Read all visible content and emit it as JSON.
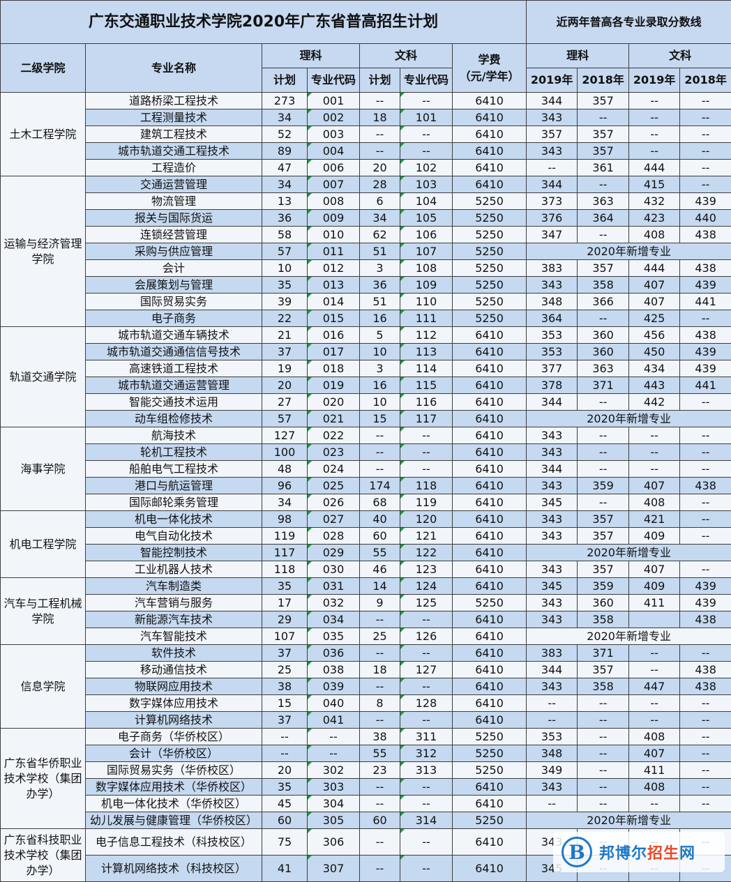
{
  "title": "广东交通职业技术学院2020年广东省普高招生计划",
  "subtitle": "近两年普高各专业录取分数线",
  "headers": {
    "college": "二级学院",
    "major": "专业名称",
    "sci": "理科",
    "arts": "文科",
    "plan": "计划",
    "code": "专业代码",
    "fee": "学费\n（元/学年）",
    "sci2": "理科",
    "arts2": "文科",
    "y2019": "2019年",
    "y2018": "2018年"
  },
  "new_label": "2020年新增专业",
  "groups": [
    {
      "name": "土木工程学院",
      "rows": [
        [
          "道路桥梁工程技术",
          "273",
          "001",
          "--",
          "--",
          "6410",
          "344",
          "357",
          "--",
          "--"
        ],
        [
          "工程测量技术",
          "34",
          "002",
          "18",
          "101",
          "6410",
          "343",
          "--",
          "--",
          "--"
        ],
        [
          "建筑工程技术",
          "52",
          "003",
          "--",
          "--",
          "6410",
          "357",
          "357",
          "--",
          "--"
        ],
        [
          "城市轨道交通工程技术",
          "89",
          "004",
          "--",
          "--",
          "6410",
          "343",
          "357",
          "--",
          "--"
        ],
        [
          "工程造价",
          "47",
          "006",
          "20",
          "102",
          "6410",
          "--",
          "361",
          "444",
          "--"
        ]
      ]
    },
    {
      "name": "运输与经济管理学院",
      "rows": [
        [
          "交通运营管理",
          "34",
          "007",
          "28",
          "103",
          "6410",
          "344",
          "--",
          "415",
          "--"
        ],
        [
          "物流管理",
          "13",
          "008",
          "6",
          "104",
          "5250",
          "373",
          "363",
          "432",
          "439"
        ],
        [
          "报关与国际货运",
          "36",
          "009",
          "34",
          "105",
          "5250",
          "376",
          "364",
          "423",
          "440"
        ],
        [
          "连锁经营管理",
          "58",
          "010",
          "62",
          "106",
          "5250",
          "347",
          "--",
          "408",
          "438"
        ],
        [
          "采购与供应管理",
          "57",
          "011",
          "51",
          "107",
          "5250",
          "NEW"
        ],
        [
          "会计",
          "10",
          "012",
          "3",
          "108",
          "5250",
          "383",
          "357",
          "444",
          "438"
        ],
        [
          "会展策划与管理",
          "35",
          "013",
          "36",
          "109",
          "5250",
          "343",
          "358",
          "407",
          "439"
        ],
        [
          "国际贸易实务",
          "39",
          "014",
          "51",
          "110",
          "5250",
          "348",
          "366",
          "407",
          "441"
        ],
        [
          "电子商务",
          "22",
          "015",
          "16",
          "111",
          "5250",
          "364",
          "--",
          "425",
          "--"
        ]
      ]
    },
    {
      "name": "轨道交通学院",
      "rows": [
        [
          "城市轨道交通车辆技术",
          "21",
          "016",
          "5",
          "112",
          "6410",
          "353",
          "360",
          "456",
          "438"
        ],
        [
          "城市轨道交通通信信号技术",
          "37",
          "017",
          "10",
          "113",
          "6410",
          "353",
          "360",
          "450",
          "439"
        ],
        [
          "高速铁道工程技术",
          "19",
          "018",
          "3",
          "114",
          "6410",
          "377",
          "363",
          "434",
          "439"
        ],
        [
          "城市轨道交通运营管理",
          "20",
          "019",
          "16",
          "115",
          "6410",
          "378",
          "371",
          "443",
          "441"
        ],
        [
          "智能交通技术运用",
          "27",
          "020",
          "10",
          "116",
          "6410",
          "344",
          "--",
          "442",
          "--"
        ],
        [
          "动车组检修技术",
          "57",
          "021",
          "15",
          "117",
          "6410",
          "NEW"
        ]
      ]
    },
    {
      "name": "海事学院",
      "rows": [
        [
          "航海技术",
          "127",
          "022",
          "--",
          "--",
          "6410",
          "343",
          "--",
          "--",
          "--"
        ],
        [
          "轮机工程技术",
          "100",
          "023",
          "--",
          "--",
          "6410",
          "343",
          "--",
          "--",
          "--"
        ],
        [
          "船舶电气工程技术",
          "48",
          "024",
          "--",
          "--",
          "6410",
          "344",
          "--",
          "--",
          "--"
        ],
        [
          "港口与航运管理",
          "96",
          "025",
          "174",
          "118",
          "6410",
          "343",
          "359",
          "407",
          "438"
        ],
        [
          "国际邮轮乘务管理",
          "34",
          "026",
          "68",
          "119",
          "6410",
          "345",
          "--",
          "408",
          "--"
        ]
      ]
    },
    {
      "name": "机电工程学院",
      "rows": [
        [
          "机电一体化技术",
          "98",
          "027",
          "40",
          "120",
          "6410",
          "343",
          "357",
          "421",
          "--"
        ],
        [
          "电气自动化技术",
          "119",
          "028",
          "60",
          "121",
          "6410",
          "343",
          "357",
          "409",
          "--"
        ],
        [
          "智能控制技术",
          "117",
          "029",
          "55",
          "122",
          "6410",
          "NEW"
        ],
        [
          "工业机器人技术",
          "118",
          "030",
          "46",
          "123",
          "6410",
          "343",
          "357",
          "407",
          "--"
        ]
      ]
    },
    {
      "name": "汽车与工程机械学院",
      "rows": [
        [
          "汽车制造类",
          "35",
          "031",
          "14",
          "124",
          "6410",
          "345",
          "359",
          "409",
          "439"
        ],
        [
          "汽车营销与服务",
          "17",
          "032",
          "9",
          "125",
          "5250",
          "343",
          "360",
          "411",
          "439"
        ],
        [
          "新能源汽车技术",
          "29",
          "034",
          "--",
          "--",
          "6410",
          "343",
          "358",
          "",
          "438"
        ],
        [
          "汽车智能技术",
          "107",
          "035",
          "25",
          "126",
          "6410",
          "NEW"
        ]
      ]
    },
    {
      "name": "信息学院",
      "rows": [
        [
          "软件技术",
          "37",
          "036",
          "--",
          "--",
          "6410",
          "383",
          "371",
          "--",
          "--"
        ],
        [
          "移动通信技术",
          "25",
          "038",
          "18",
          "127",
          "6410",
          "344",
          "357",
          "--",
          "438"
        ],
        [
          "物联网应用技术",
          "38",
          "039",
          "--",
          "--",
          "6410",
          "343",
          "358",
          "447",
          "438"
        ],
        [
          "数字媒体应用技术",
          "15",
          "040",
          "8",
          "128",
          "6410",
          "--",
          "--",
          "--",
          "--"
        ],
        [
          "计算机网络技术",
          "37",
          "041",
          "--",
          "--",
          "6410",
          "--",
          "--",
          "--",
          "--"
        ]
      ]
    },
    {
      "name": "广东省华侨职业技术学校（集团办学）",
      "rows": [
        [
          "电子商务（华侨校区）",
          "--",
          "--",
          "38",
          "311",
          "5250",
          "353",
          "--",
          "408",
          "--"
        ],
        [
          "会计（华侨校区）",
          "--",
          "--",
          "55",
          "312",
          "5250",
          "348",
          "--",
          "407",
          "--"
        ],
        [
          "国际贸易实务（华侨校区）",
          "20",
          "302",
          "23",
          "313",
          "5250",
          "349",
          "--",
          "411",
          "--"
        ],
        [
          "数字媒体应用技术（华侨校区）",
          "35",
          "303",
          "--",
          "--",
          "6410",
          "343",
          "--",
          "408",
          "--"
        ],
        [
          "机电一体化技术（华侨校区）",
          "45",
          "304",
          "--",
          "--",
          "6410",
          "--",
          "--",
          "--",
          "--"
        ],
        [
          "幼儿发展与健康管理（华侨校区）",
          "60",
          "305",
          "60",
          "314",
          "5250",
          "NEW"
        ]
      ]
    },
    {
      "name": "广东省科技职业技术学校（集团办学）",
      "rows": [
        [
          "电子信息工程技术（科技校区）",
          "75",
          "306",
          "--",
          "--",
          "6410",
          "343",
          "--",
          "--",
          "--"
        ],
        [
          "计算机网络技术（科技校区）",
          "41",
          "307",
          "--",
          "--",
          "6410",
          "345",
          "--",
          "--",
          "--"
        ]
      ]
    }
  ],
  "watermark": {
    "logo_letter": "B",
    "name_blue": "邦博尔",
    "name_red": "招生",
    "name_tail": "网",
    "icon": "bobo-logo-icon"
  },
  "colors": {
    "header_bg": "#c6d9f1",
    "row_alt": "#c5d9f0",
    "row_plain": "#f2f6fb",
    "border": "#3c3c3c",
    "marker": "#1b9a3a"
  }
}
